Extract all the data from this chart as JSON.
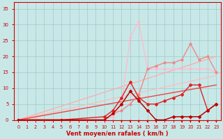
{
  "xlabel": "Vent moyen/en rafales ( km/h )",
  "xlim": [
    -0.5,
    23.5
  ],
  "ylim": [
    0,
    37
  ],
  "yticks": [
    0,
    5,
    10,
    15,
    20,
    25,
    30,
    35
  ],
  "xticks": [
    0,
    1,
    2,
    3,
    4,
    5,
    6,
    7,
    8,
    9,
    10,
    11,
    12,
    13,
    14,
    15,
    16,
    17,
    18,
    19,
    20,
    21,
    22,
    23
  ],
  "bg_color": "#c8e8e8",
  "grid_color": "#a0c8c8",
  "tick_color": "#cc0000",
  "label_color": "#cc0000",
  "lines": [
    {
      "x": [
        0,
        1,
        2,
        3,
        4,
        5,
        6,
        7,
        8,
        9,
        10,
        11,
        12,
        13,
        14,
        15,
        16,
        17,
        18,
        19,
        20,
        21,
        22,
        23
      ],
      "y": [
        0,
        0,
        0,
        0,
        0,
        0,
        0,
        0,
        0,
        0,
        0,
        0,
        0,
        0,
        0,
        0,
        0,
        0,
        0,
        0,
        0,
        0,
        0,
        0
      ],
      "color": "#ffaaaa",
      "lw": 0.8,
      "marker": "o",
      "ms": 1.5,
      "zorder": 2
    },
    {
      "x": [
        0,
        23
      ],
      "y": [
        0,
        14
      ],
      "color": "#ffbbbb",
      "lw": 0.9,
      "marker": null,
      "ms": 0,
      "zorder": 2
    },
    {
      "x": [
        0,
        23
      ],
      "y": [
        0,
        20
      ],
      "color": "#ffaaaa",
      "lw": 0.9,
      "marker": null,
      "ms": 0,
      "zorder": 2
    },
    {
      "x": [
        0,
        10,
        11,
        12,
        13,
        14,
        15,
        16,
        17,
        18,
        19,
        20,
        21,
        22,
        23
      ],
      "y": [
        0,
        0,
        1,
        5,
        26,
        31,
        16,
        16,
        16,
        16,
        16,
        16,
        16,
        16,
        15
      ],
      "color": "#ffbbcc",
      "lw": 1.0,
      "marker": "o",
      "ms": 2.0,
      "zorder": 3
    },
    {
      "x": [
        0,
        10,
        11,
        12,
        13,
        14,
        15,
        16,
        17,
        18,
        19,
        20,
        21,
        22,
        23
      ],
      "y": [
        0,
        0,
        2,
        3,
        5,
        8,
        16,
        17,
        18,
        18,
        19,
        24,
        19,
        20,
        15
      ],
      "color": "#ee8888",
      "lw": 1.0,
      "marker": "o",
      "ms": 2.0,
      "zorder": 3
    },
    {
      "x": [
        0,
        23
      ],
      "y": [
        0,
        11
      ],
      "color": "#ee4444",
      "lw": 1.0,
      "marker": null,
      "ms": 0,
      "zorder": 2
    },
    {
      "x": [
        0,
        5,
        10,
        11,
        12,
        13,
        14,
        15,
        16,
        17,
        18,
        19,
        20,
        21,
        22,
        23
      ],
      "y": [
        0,
        0,
        1,
        3,
        7,
        12,
        7,
        5,
        5,
        6,
        7,
        8,
        11,
        11,
        3,
        5
      ],
      "color": "#dd2222",
      "lw": 1.0,
      "marker": "D",
      "ms": 2.0,
      "zorder": 4
    },
    {
      "x": [
        0,
        5,
        10,
        11,
        12,
        13,
        14,
        15,
        16,
        17,
        18,
        19,
        20,
        21,
        22,
        23
      ],
      "y": [
        0,
        0,
        0,
        2,
        5,
        9,
        6,
        3,
        0,
        0,
        1,
        1,
        1,
        1,
        3,
        5
      ],
      "color": "#bb0000",
      "lw": 1.1,
      "marker": "D",
      "ms": 2.0,
      "zorder": 5
    }
  ],
  "arrows": [
    12,
    13,
    14,
    15,
    16,
    19,
    20,
    21,
    22,
    23
  ]
}
